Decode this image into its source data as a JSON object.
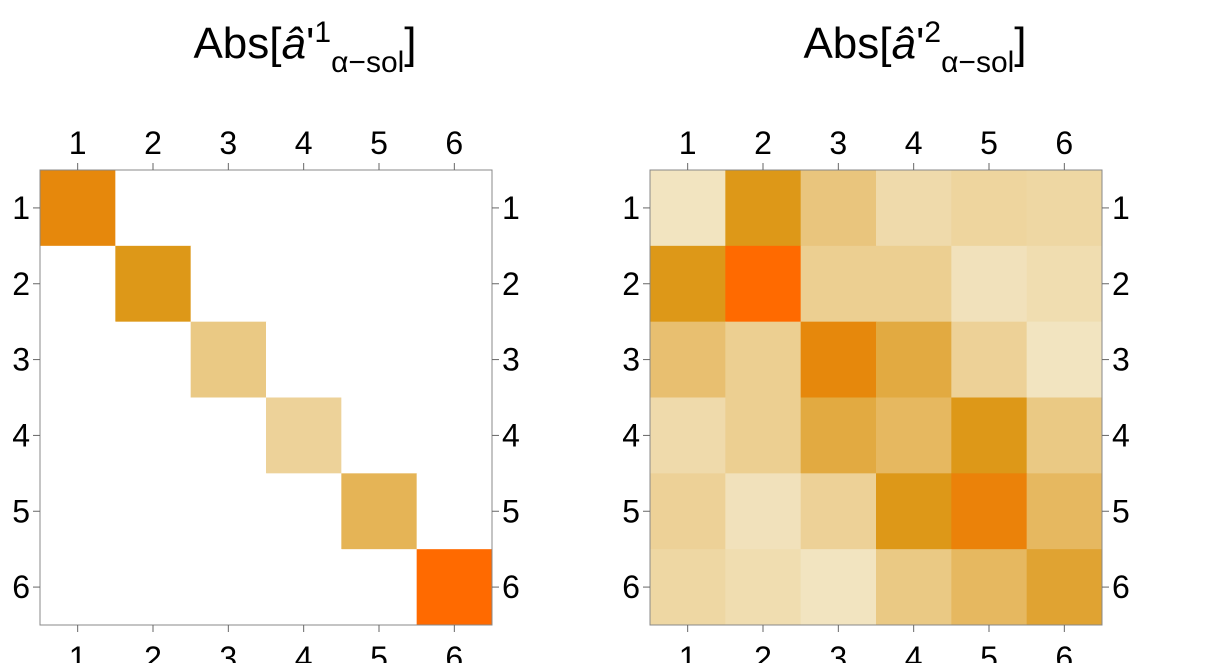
{
  "chart_data": [
    {
      "type": "heatmap",
      "title_main": "Abs[",
      "title_hat": "â",
      "title_prime": "'",
      "title_sup": "1",
      "title_sub": "α−sol",
      "title_close": "]",
      "row_labels": [
        "1",
        "2",
        "3",
        "4",
        "5",
        "6"
      ],
      "col_labels": [
        "1",
        "2",
        "3",
        "4",
        "5",
        "6"
      ],
      "color_scale": {
        "low": "#ffffff",
        "mid": "#dc9410",
        "high": "#ff6a00"
      },
      "values": [
        [
          0.82,
          0,
          0,
          0,
          0,
          0
        ],
        [
          0,
          0.72,
          0,
          0,
          0,
          0
        ],
        [
          0,
          0,
          0.3,
          0,
          0,
          0
        ],
        [
          0,
          0,
          0,
          0.22,
          0,
          0
        ],
        [
          0,
          0,
          0,
          0,
          0.48,
          0
        ],
        [
          0,
          0,
          0,
          0,
          0,
          1.0
        ]
      ]
    },
    {
      "type": "heatmap",
      "title_main": "Abs[",
      "title_hat": "â",
      "title_prime": "'",
      "title_sup": "2",
      "title_sub": "α−sol",
      "title_close": "]",
      "row_labels": [
        "1",
        "2",
        "3",
        "4",
        "5",
        "6"
      ],
      "col_labels": [
        "1",
        "2",
        "3",
        "4",
        "5",
        "6"
      ],
      "color_scale": {
        "low": "#ffffff",
        "mid": "#dc9410",
        "high": "#ff6a00"
      },
      "values": [
        [
          0.07,
          0.72,
          0.33,
          0.15,
          0.2,
          0.18
        ],
        [
          0.72,
          1.0,
          0.25,
          0.25,
          0.09,
          0.13
        ],
        [
          0.38,
          0.25,
          0.82,
          0.56,
          0.23,
          0.07
        ],
        [
          0.15,
          0.25,
          0.56,
          0.44,
          0.72,
          0.3
        ],
        [
          0.23,
          0.09,
          0.23,
          0.72,
          0.86,
          0.44
        ],
        [
          0.18,
          0.13,
          0.07,
          0.3,
          0.44,
          0.62
        ]
      ]
    }
  ]
}
